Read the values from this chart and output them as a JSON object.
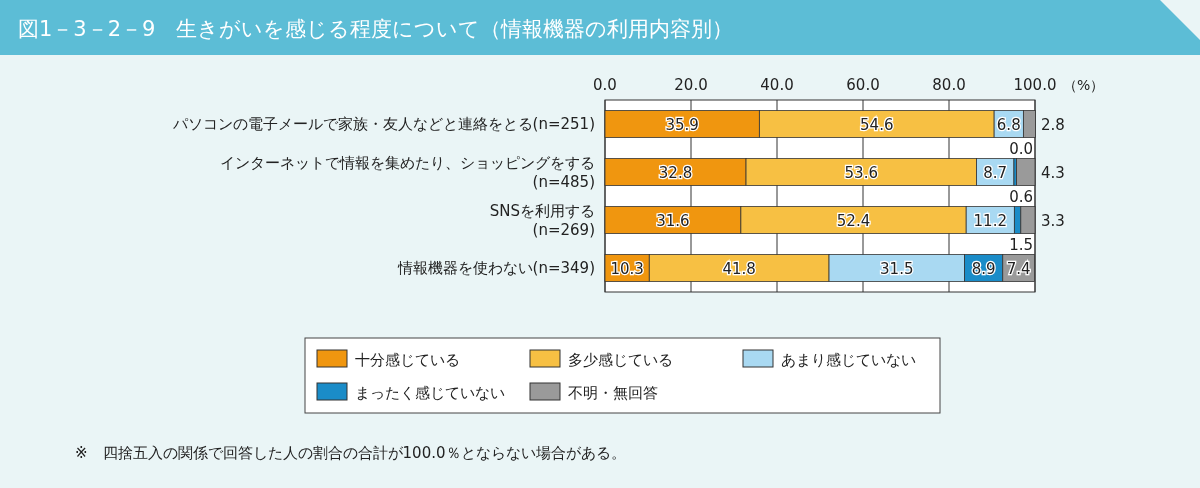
{
  "chart_data": {
    "type": "bar",
    "orientation": "horizontal",
    "stacked": true,
    "title": "図1－3－2－9　生きがいを感じる程度について（情報機器の利用内容別）",
    "categories": [
      "パソコンの電子メールで家族・友人などと連絡をとる(n=251)",
      "インターネットで情報を集めたり、ショッピングをする\n(n=485)",
      "SNSを利用する\n(n=269)",
      "情報機器を使わない(n=349)"
    ],
    "series": [
      {
        "name": "十分感じている",
        "color": "#f0960f",
        "values": [
          35.9,
          32.8,
          31.6,
          10.3
        ],
        "value_labels": [
          "35.9",
          "32.8",
          "31.6",
          "10.3"
        ]
      },
      {
        "name": "多少感じている",
        "color": "#f7c043",
        "values": [
          54.6,
          53.6,
          52.4,
          41.8
        ],
        "value_labels": [
          "54.6",
          "53.6",
          "52.4",
          "41.8"
        ]
      },
      {
        "name": "あまり感じていない",
        "color": "#a9d9f2",
        "values": [
          6.8,
          8.7,
          11.2,
          31.5
        ],
        "value_labels": [
          "6.8",
          "8.7",
          "11.2",
          "31.5"
        ]
      },
      {
        "name": "まったく感じていない",
        "color": "#1a8cc8",
        "values": [
          0.0,
          0.6,
          1.5,
          8.9
        ],
        "value_labels": [
          "0.0",
          "0.6",
          "1.5",
          "8.9"
        ]
      },
      {
        "name": "不明・無回答",
        "color": "#9a9a9a",
        "values": [
          2.8,
          4.3,
          3.3,
          7.4
        ],
        "value_labels": [
          "2.8",
          "4.3",
          "3.3",
          "7.4"
        ]
      }
    ],
    "xlim": [
      0,
      100
    ],
    "xticks": [
      {
        "value": 0,
        "label": "0.0"
      },
      {
        "value": 20,
        "label": "20.0"
      },
      {
        "value": 40,
        "label": "40.0"
      },
      {
        "value": 60,
        "label": "60.0"
      },
      {
        "value": 80,
        "label": "80.0"
      },
      {
        "value": 100,
        "label": "100.0"
      }
    ],
    "xlabel": "（%）",
    "grid": "x",
    "legend": "bottom",
    "annotations": [
      "※　四捨五入の関係で回答した人の割合の合計が100.0％とならない場合がある。"
    ]
  }
}
